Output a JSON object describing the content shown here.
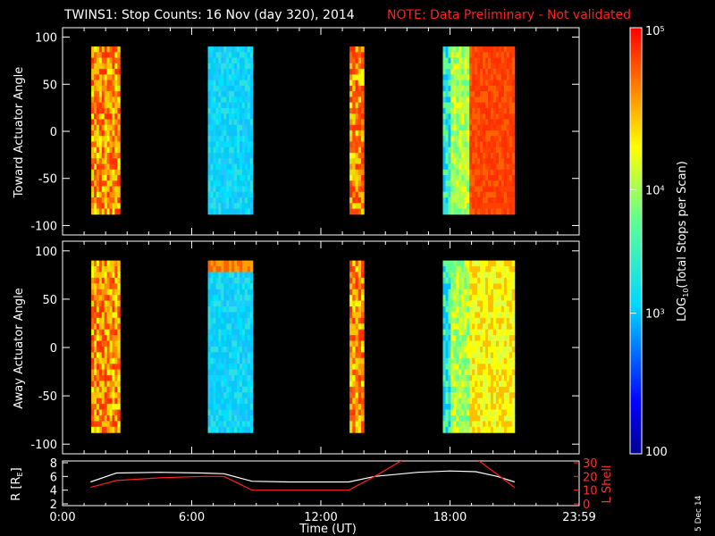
{
  "header": {
    "title": "TWINS1: Stop Counts: 16 Nov (day 320), 2014",
    "note": "NOTE: Data Preliminary - Not validated"
  },
  "stamp": "5 Dec 14",
  "chart_data": [
    {
      "type": "heatmap",
      "panel": "top",
      "ylabel": "Toward Actuator Angle",
      "ylim": [
        -110,
        110
      ],
      "yticks": [
        "100",
        "50",
        "0",
        "-50",
        "-100"
      ],
      "xlim_hours": [
        0,
        24
      ],
      "data_blocks": [
        {
          "start": "01:20",
          "end": "02:40",
          "angle_range": [
            -88,
            90
          ],
          "level": "high"
        },
        {
          "start": "06:45",
          "end": "08:50",
          "angle_range": [
            -88,
            90
          ],
          "level": "low"
        },
        {
          "start": "13:20",
          "end": "14:00",
          "angle_range": [
            -88,
            90
          ],
          "level": "high"
        },
        {
          "start": "17:40",
          "end": "21:00",
          "angle_range": [
            -88,
            90
          ],
          "level": "mixed"
        }
      ]
    },
    {
      "type": "heatmap",
      "panel": "middle",
      "ylabel": "Away Actuator Angle",
      "ylim": [
        -110,
        110
      ],
      "yticks": [
        "100",
        "50",
        "0",
        "-50",
        "-100"
      ],
      "xlim_hours": [
        0,
        24
      ],
      "data_blocks": [
        {
          "start": "01:20",
          "end": "02:40",
          "angle_range": [
            -88,
            90
          ],
          "level": "high"
        },
        {
          "start": "06:45",
          "end": "08:50",
          "angle_range": [
            -88,
            90
          ],
          "level": "low"
        },
        {
          "start": "13:20",
          "end": "14:00",
          "angle_range": [
            -88,
            90
          ],
          "level": "high"
        },
        {
          "start": "17:40",
          "end": "21:00",
          "angle_range": [
            -88,
            90
          ],
          "level": "mixed"
        }
      ]
    },
    {
      "type": "line",
      "panel": "bottom",
      "ylabel": "R [RE]",
      "y2label": "L Shell",
      "ylim": [
        2,
        8
      ],
      "y2lim": [
        0,
        30
      ],
      "yticks": [
        "8",
        "6",
        "4",
        "2"
      ],
      "y2ticks": [
        "30",
        "20",
        "10",
        "0"
      ],
      "xlabel": "Time (UT)",
      "xticks": [
        "0:00",
        "6:00",
        "12:00",
        "18:00",
        "23:59"
      ],
      "series": [
        {
          "axis": "R",
          "color": "#ffffff",
          "points": [
            [
              1.3,
              5.2
            ],
            [
              2.5,
              6.5
            ],
            [
              4.5,
              6.6
            ],
            [
              6.5,
              6.5
            ],
            [
              7.5,
              6.4
            ],
            [
              8.8,
              5.3
            ],
            [
              10.5,
              5.2
            ],
            [
              12,
              5.2
            ],
            [
              13.3,
              5.2
            ],
            [
              14.5,
              6.0
            ],
            [
              16.5,
              6.6
            ],
            [
              18,
              6.8
            ],
            [
              19.2,
              6.7
            ],
            [
              20.2,
              6.0
            ],
            [
              21,
              5.2
            ]
          ]
        },
        {
          "axis": "L",
          "color": "#ff2020",
          "points": [
            [
              1.3,
              12
            ],
            [
              2.5,
              17
            ],
            [
              4.5,
              19
            ],
            [
              6.5,
              20
            ],
            [
              7.5,
              20
            ],
            [
              8.8,
              10
            ],
            [
              10.5,
              10
            ],
            [
              12,
              10
            ],
            [
              13.3,
              10
            ],
            [
              14.5,
              20
            ],
            [
              15.8,
              32
            ],
            [
              19.3,
              32
            ],
            [
              21,
              12
            ]
          ]
        }
      ]
    }
  ],
  "colorbar": {
    "label_prefix": "LOG",
    "label_sub": "10",
    "label_suffix": "(Total Stops per Scan)",
    "tick_max": "10",
    "tick_max_exp": "5",
    "tick_mid_hi": "10",
    "tick_mid_hi_exp": "4",
    "tick_mid_lo": "10",
    "tick_mid_lo_exp": "3",
    "tick_min": "100"
  },
  "rlabel_sub": "E"
}
